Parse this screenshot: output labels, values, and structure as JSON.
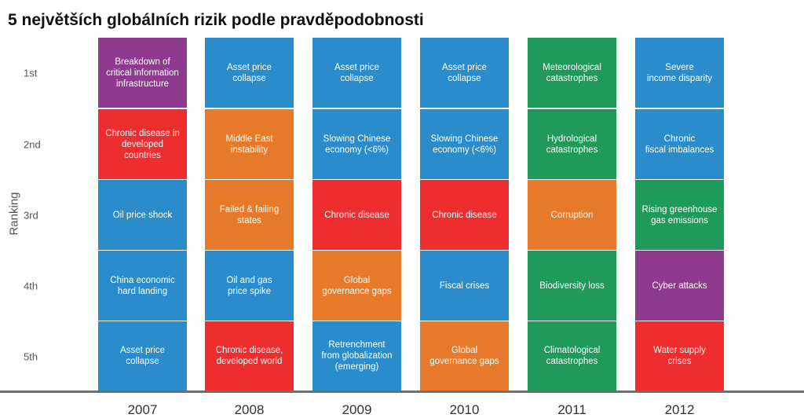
{
  "chart_data": {
    "type": "table",
    "title": "5 největších globálních rizik podle pravděpodobnosti",
    "ylabel": "Ranking",
    "rows": [
      "1st",
      "2nd",
      "3rd",
      "4th",
      "5th"
    ],
    "columns": [
      {
        "year": "2007",
        "cells": [
          {
            "label": "Breakdown of\ncritical information\ninfrastructure",
            "color": "#8e3a8e"
          },
          {
            "label": "Chronic disease in\ndeveloped countries",
            "color": "#ee2d2f"
          },
          {
            "label": "Oil price shock",
            "color": "#2a8ccb"
          },
          {
            "label": "China economic\nhard landing",
            "color": "#2a8ccb"
          },
          {
            "label": "Asset price collapse",
            "color": "#2a8ccb"
          }
        ]
      },
      {
        "year": "2008",
        "cells": [
          {
            "label": "Asset price collapse",
            "color": "#2a8ccb"
          },
          {
            "label": "Middle East\ninstability",
            "color": "#e7792a"
          },
          {
            "label": "Failed & failing\nstates",
            "color": "#e7792a"
          },
          {
            "label": "Oil and gas\nprice spike",
            "color": "#2a8ccb"
          },
          {
            "label": "Chronic disease,\ndeveloped world",
            "color": "#ee2d2f"
          }
        ]
      },
      {
        "year": "2009",
        "cells": [
          {
            "label": "Asset price collapse",
            "color": "#2a8ccb"
          },
          {
            "label": "Slowing Chinese\neconomy (<6%)",
            "color": "#2a8ccb"
          },
          {
            "label": "Chronic disease",
            "color": "#ee2d2f"
          },
          {
            "label": "Global\ngovernance gaps",
            "color": "#e7792a"
          },
          {
            "label": "Retrenchment\nfrom globalization\n(emerging)",
            "color": "#2a8ccb"
          }
        ]
      },
      {
        "year": "2010",
        "cells": [
          {
            "label": "Asset price collapse",
            "color": "#2a8ccb"
          },
          {
            "label": "Slowing Chinese\neconomy (<6%)",
            "color": "#2a8ccb"
          },
          {
            "label": "Chronic disease",
            "color": "#ee2d2f"
          },
          {
            "label": "Fiscal crises",
            "color": "#2a8ccb"
          },
          {
            "label": "Global\ngovernance gaps",
            "color": "#e7792a"
          }
        ]
      },
      {
        "year": "2011",
        "cells": [
          {
            "label": "Meteorological\ncatastrophes",
            "color": "#1f9a5b"
          },
          {
            "label": "Hydrological\ncatastrophes",
            "color": "#1f9a5b"
          },
          {
            "label": "Corruption",
            "color": "#e7792a"
          },
          {
            "label": "Biodiversity loss",
            "color": "#1f9a5b"
          },
          {
            "label": "Climatological\ncatastrophes",
            "color": "#1f9a5b"
          }
        ]
      },
      {
        "year": "2012",
        "cells": [
          {
            "label": "Severe\nincome disparity",
            "color": "#2a8ccb"
          },
          {
            "label": "Chronic\nfiscal imbalances",
            "color": "#2a8ccb"
          },
          {
            "label": "Rising greenhouse\ngas emissions",
            "color": "#1f9a5b"
          },
          {
            "label": "Cyber attacks",
            "color": "#8e3a8e"
          },
          {
            "label": "Water supply\ncrises",
            "color": "#ee2d2f"
          }
        ]
      }
    ]
  }
}
